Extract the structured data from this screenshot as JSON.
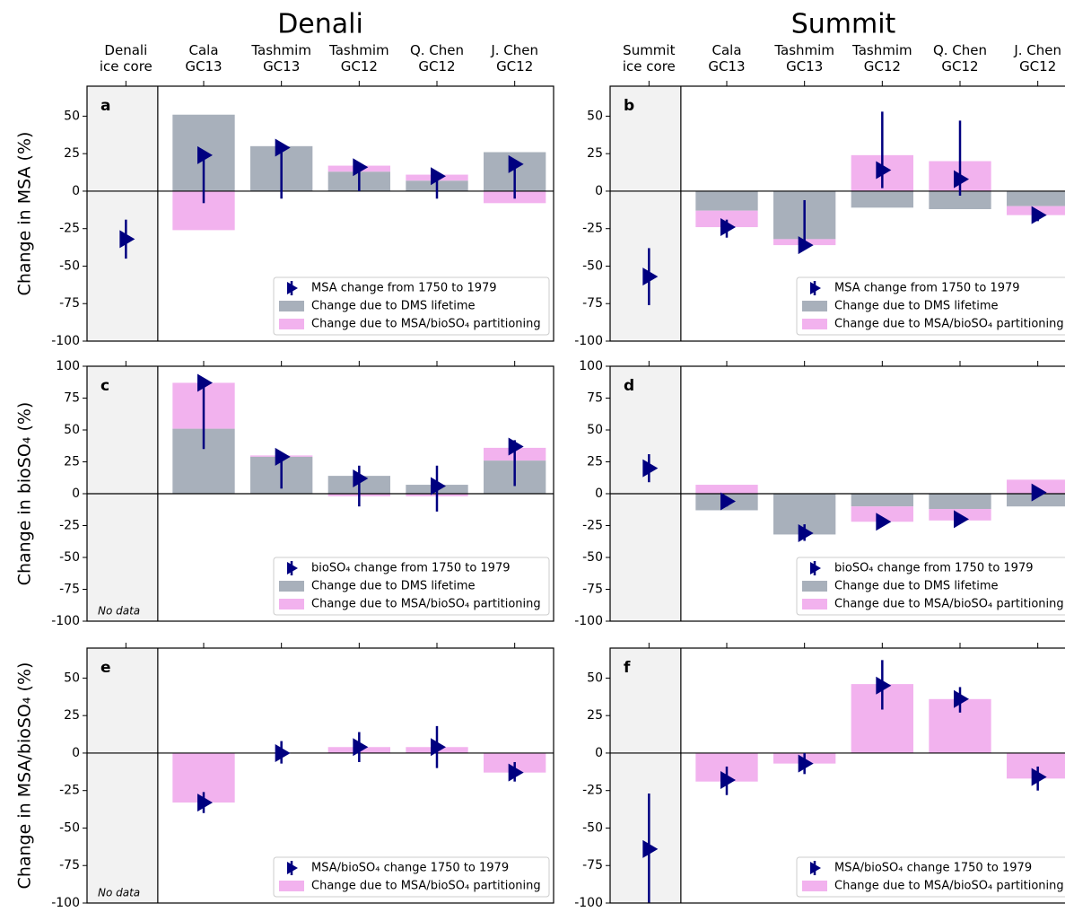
{
  "chart_data": [
    {
      "type": "bar",
      "title": "Denali",
      "panel_label": "a",
      "ylabel": "Change in MSA (%)",
      "categories": [
        "Denali\nice core",
        "Cala\nGC13",
        "Tashmim\nGC13",
        "Tashmim\nGC12",
        "Q. Chen\nGC12",
        "J. Chen\nGC12"
      ],
      "ylim": [
        -100,
        70
      ],
      "yticks": [
        -100,
        -75,
        -50,
        -25,
        0,
        25,
        50
      ],
      "legend": "lower right",
      "series": [
        {
          "name": "MSA change from 1750 to 1979",
          "style": "marker",
          "color": "#000080",
          "values": [
            -32,
            24,
            29,
            16,
            10,
            18
          ],
          "ranges": [
            [
              -45,
              -19
            ],
            [
              -8,
              25
            ],
            [
              -5,
              30
            ],
            [
              0,
              17
            ],
            [
              -5,
              11
            ],
            [
              -5,
              19
            ]
          ]
        },
        {
          "name": "Change due to DMS lifetime",
          "style": "bar",
          "color": "#a8b0bb",
          "values": [
            null,
            51,
            30,
            13,
            7,
            26
          ]
        },
        {
          "name": "Change due to MSA/bioSO₄ partitioning",
          "style": "bar",
          "color": "#f2b2ee",
          "values": [
            null,
            -26,
            0,
            4,
            4,
            -8
          ]
        }
      ]
    },
    {
      "type": "bar",
      "title": "Summit",
      "panel_label": "b",
      "categories": [
        "Summit\nice core",
        "Cala\nGC13",
        "Tashmim\nGC13",
        "Tashmim\nGC12",
        "Q. Chen\nGC12",
        "J. Chen\nGC12"
      ],
      "ylim": [
        -100,
        70
      ],
      "yticks": [
        -100,
        -75,
        -50,
        -25,
        0,
        25,
        50
      ],
      "legend": "lower right",
      "series": [
        {
          "name": "MSA change from 1750 to 1979",
          "style": "marker",
          "color": "#000080",
          "values": [
            -57,
            -24,
            -36,
            14,
            8,
            -16
          ],
          "ranges": [
            [
              -76,
              -38
            ],
            [
              -31,
              -19
            ],
            [
              -38,
              -6
            ],
            [
              2,
              53
            ],
            [
              -3,
              47
            ],
            [
              -20,
              -13
            ]
          ]
        },
        {
          "name": "Change due to DMS lifetime",
          "style": "bar",
          "color": "#a8b0bb",
          "values": [
            null,
            -13,
            -32,
            -11,
            -12,
            -10
          ]
        },
        {
          "name": "Change due to MSA/bioSO₄ partitioning",
          "style": "bar",
          "color": "#f2b2ee",
          "values": [
            null,
            -11,
            -4,
            24,
            20,
            -6
          ]
        }
      ]
    },
    {
      "type": "bar",
      "panel_label": "c",
      "ylabel": "Change in bioSO₄ (%)",
      "annotation": "No data",
      "categories": [
        null,
        null,
        null,
        null,
        null,
        null
      ],
      "ylim": [
        -100,
        100
      ],
      "yticks": [
        -100,
        -75,
        -50,
        -25,
        0,
        25,
        50,
        75,
        100
      ],
      "legend": "lower right",
      "series": [
        {
          "name": "bioSO₄ change from 1750 to 1979",
          "style": "marker",
          "color": "#000080",
          "values": [
            null,
            87,
            29,
            12,
            6,
            37
          ],
          "ranges": [
            null,
            [
              35,
              88
            ],
            [
              4,
              30
            ],
            [
              -10,
              22
            ],
            [
              -14,
              22
            ],
            [
              6,
              42
            ]
          ]
        },
        {
          "name": "Change due to DMS lifetime",
          "style": "bar",
          "color": "#a8b0bb",
          "values": [
            null,
            51,
            29,
            14,
            7,
            26
          ]
        },
        {
          "name": "Change due to MSA/bioSO₄ partitioning",
          "style": "bar",
          "color": "#f2b2ee",
          "values": [
            null,
            36,
            1,
            -2,
            -2,
            10
          ]
        }
      ]
    },
    {
      "type": "bar",
      "panel_label": "d",
      "categories": [
        null,
        null,
        null,
        null,
        null,
        null
      ],
      "ylim": [
        -100,
        100
      ],
      "yticks": [
        -100,
        -75,
        -50,
        -25,
        0,
        25,
        50,
        75,
        100
      ],
      "legend": "lower right",
      "series": [
        {
          "name": "bioSO₄ change from 1750 to 1979",
          "style": "marker",
          "color": "#000080",
          "values": [
            20,
            -6,
            -31,
            -22,
            -20,
            1
          ],
          "ranges": [
            [
              9,
              31
            ],
            [
              -10,
              -4
            ],
            [
              -37,
              -24
            ],
            [
              -24,
              -20
            ],
            [
              -22,
              -17
            ],
            [
              -2,
              3
            ]
          ]
        },
        {
          "name": "Change due to DMS lifetime",
          "style": "bar",
          "color": "#a8b0bb",
          "values": [
            null,
            -13,
            -32,
            -10,
            -12,
            -10
          ]
        },
        {
          "name": "Change due to MSA/bioSO₄ partitioning",
          "style": "bar",
          "color": "#f2b2ee",
          "values": [
            null,
            7,
            0,
            -12,
            -9,
            11
          ]
        }
      ]
    },
    {
      "type": "bar",
      "panel_label": "e",
      "ylabel": "Change in MSA/bioSO₄ (%)",
      "annotation": "No data",
      "categories": [
        null,
        null,
        null,
        null,
        null,
        null
      ],
      "ylim": [
        -100,
        70
      ],
      "yticks": [
        -100,
        -75,
        -50,
        -25,
        0,
        25,
        50
      ],
      "legend": "lower right",
      "series": [
        {
          "name": "MSA/bioSO₄ change 1750 to 1979",
          "style": "marker",
          "color": "#000080",
          "values": [
            null,
            -33,
            0,
            4,
            4,
            -13
          ],
          "ranges": [
            null,
            [
              -40,
              -26
            ],
            [
              -7,
              8
            ],
            [
              -6,
              14
            ],
            [
              -10,
              18
            ],
            [
              -19,
              -6
            ]
          ]
        },
        {
          "name": "Change due to MSA/bioSO₄ partitioning",
          "style": "bar",
          "color": "#f2b2ee",
          "values": [
            null,
            -33,
            0,
            4,
            4,
            -13
          ]
        }
      ]
    },
    {
      "type": "bar",
      "panel_label": "f",
      "categories": [
        null,
        null,
        null,
        null,
        null,
        null
      ],
      "ylim": [
        -100,
        70
      ],
      "yticks": [
        -100,
        -75,
        -50,
        -25,
        0,
        25,
        50
      ],
      "legend": "lower right",
      "series": [
        {
          "name": "MSA/bioSO₄ change 1750 to 1979",
          "style": "marker",
          "color": "#000080",
          "values": [
            -64,
            -18,
            -7,
            45,
            36,
            -16
          ],
          "ranges": [
            [
              -100,
              -27
            ],
            [
              -28,
              -9
            ],
            [
              -14,
              0
            ],
            [
              29,
              62
            ],
            [
              27,
              44
            ],
            [
              -25,
              -9
            ]
          ]
        },
        {
          "name": "Change due to MSA/bioSO₄ partitioning",
          "style": "bar",
          "color": "#f2b2ee",
          "values": [
            null,
            -19,
            -7,
            46,
            36,
            -17
          ]
        }
      ]
    }
  ]
}
